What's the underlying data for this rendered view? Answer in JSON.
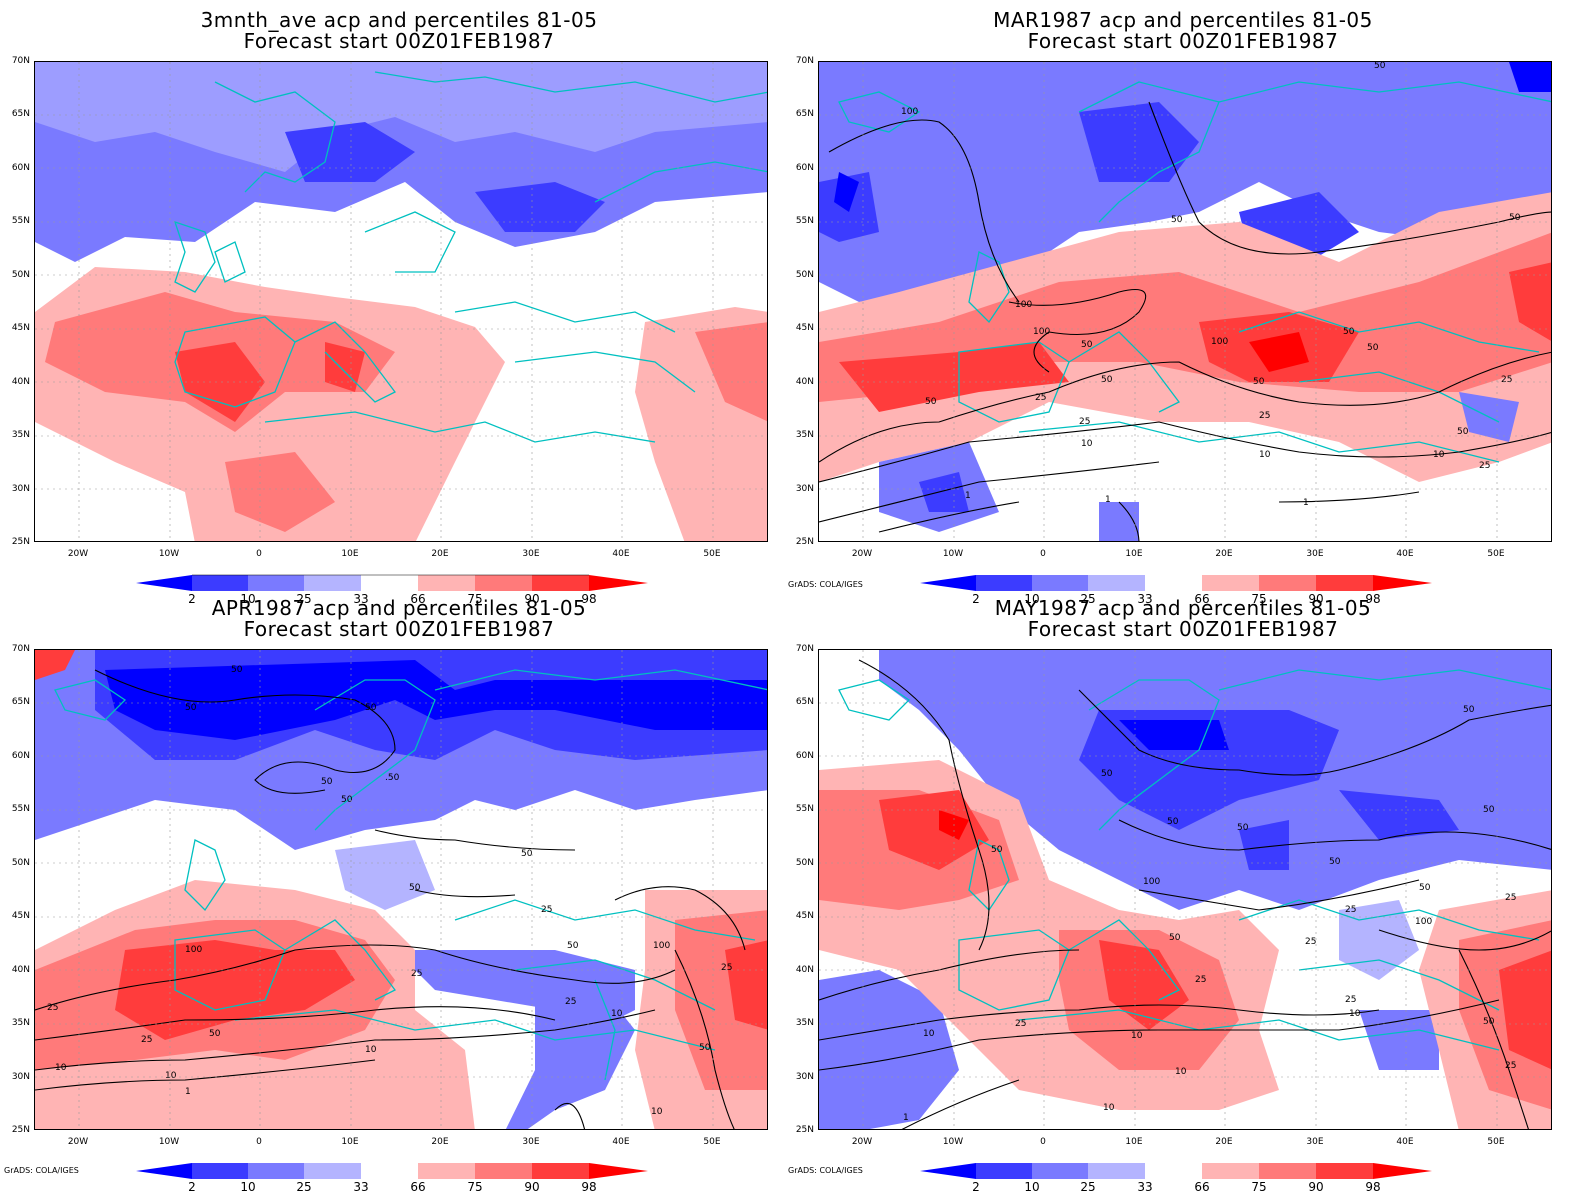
{
  "panels": [
    {
      "title_line1": "3mnth_ave acp and percentiles 81-05",
      "title_line2": "Forecast start 00Z01FEB1987",
      "credit": ""
    },
    {
      "title_line1": "MAR1987 acp and percentiles 81-05",
      "title_line2": "Forecast start 00Z01FEB1987",
      "credit": "GrADS: COLA/IGES"
    },
    {
      "title_line1": "APR1987 acp and percentiles 81-05",
      "title_line2": "Forecast start 00Z01FEB1987",
      "credit": "GrADS: COLA/IGES"
    },
    {
      "title_line1": "MAY1987 acp and percentiles 81-05",
      "title_line2": "Forecast start 00Z01FEB1987",
      "credit": "GrADS: COLA/IGES"
    }
  ],
  "lat_labels": [
    "70N",
    "65N",
    "60N",
    "55N",
    "50N",
    "45N",
    "40N",
    "35N",
    "30N",
    "25N"
  ],
  "lon_labels": [
    "20W",
    "10W",
    "0",
    "10E",
    "20E",
    "30E",
    "40E",
    "50E"
  ],
  "colorbar": {
    "labels": [
      "2",
      "10",
      "25",
      "33",
      "66",
      "75",
      "90",
      "98"
    ],
    "colors": [
      "#0000ff",
      "#3c3cff",
      "#7a7aff",
      "#b4b4ff",
      "#ffffff",
      "#ffb4b4",
      "#ff7a7a",
      "#ff3c3c",
      "#ff0000"
    ]
  },
  "contour_labels": {
    "mar": [
      "50",
      "100",
      "100",
      "100",
      "50",
      "50",
      "25",
      "50",
      "25",
      "10",
      "1",
      "1",
      "10",
      "25",
      "50",
      "10",
      "25",
      "1",
      "50",
      "50",
      "100",
      "50",
      "50",
      "25",
      "50"
    ],
    "apr": [
      "50",
      "50",
      "50",
      "50",
      ".50",
      "50",
      "50",
      "25",
      "50",
      "100",
      "100",
      "25",
      "50",
      "25",
      "25",
      "10",
      "10",
      "50",
      "10",
      "1",
      "10",
      "25",
      "50",
      "25",
      "10"
    ],
    "may": [
      "50",
      "50",
      "50",
      "100",
      "50",
      "50",
      "50",
      "50",
      "25",
      "25",
      "100",
      "25",
      "50",
      "50",
      "25",
      "10",
      "10",
      "25",
      "10",
      "25",
      "10",
      "10",
      "1",
      "50",
      "25"
    ]
  },
  "colors": {
    "coast": "#00c0c0",
    "contour": "#000000"
  }
}
